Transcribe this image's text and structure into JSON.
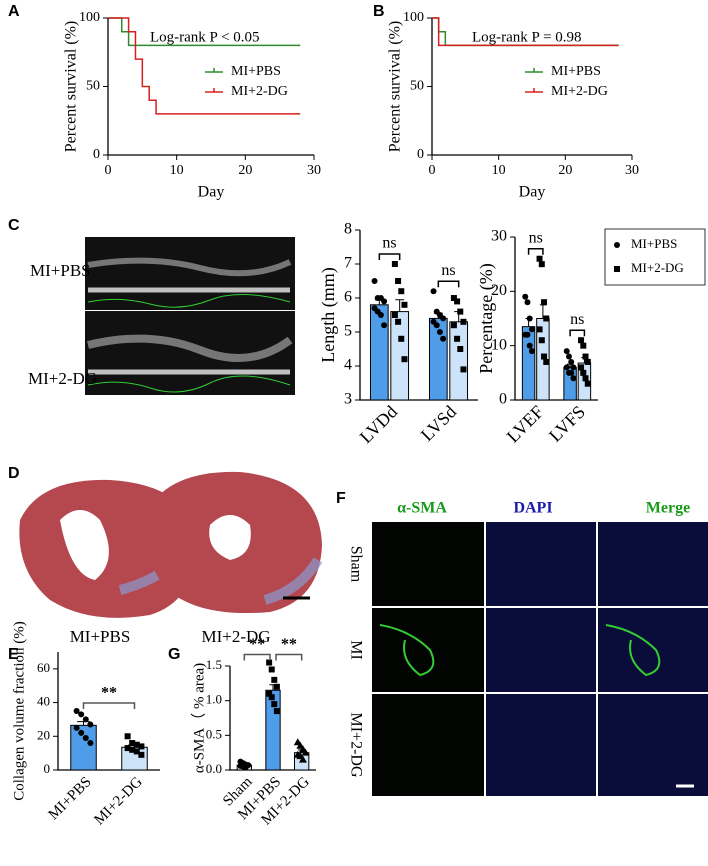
{
  "panels": {
    "letters": [
      "A",
      "B",
      "C",
      "D",
      "E",
      "F",
      "G"
    ],
    "echo_labels": [
      "MI+PBS",
      "MI+2-DG"
    ],
    "heart_labels": [
      "MI+PBS",
      "MI+2-DG"
    ],
    "fluor_columns": [
      "α-SMA",
      "DAPI",
      "Merge"
    ],
    "fluor_rows": [
      "Sham",
      "MI",
      "MI+2-DG"
    ]
  },
  "chart_data": [
    {
      "type": "step",
      "annotation": "Log-rank P < 0.05",
      "x_label": "Day",
      "y_label": "Percent survival (%)",
      "xlim": [
        0,
        30
      ],
      "xticks": [
        0,
        10,
        20,
        30
      ],
      "ylim": [
        0,
        100
      ],
      "yticks": [
        0,
        50,
        100
      ],
      "series": [
        {
          "name": "MI+PBS",
          "color": "#2e8b2e",
          "x": [
            0,
            2,
            3,
            28
          ],
          "values": [
            100,
            90,
            80,
            80
          ]
        },
        {
          "name": "MI+2-DG",
          "color": "#d62020",
          "x": [
            0,
            3,
            4,
            5,
            6,
            7,
            28
          ],
          "values": [
            100,
            90,
            70,
            50,
            40,
            30,
            30
          ]
        }
      ]
    },
    {
      "type": "step",
      "annotation": "Log-rank P = 0.98",
      "x_label": "Day",
      "y_label": "Percent survival (%)",
      "xlim": [
        0,
        30
      ],
      "xticks": [
        0,
        10,
        20,
        30
      ],
      "ylim": [
        0,
        100
      ],
      "yticks": [
        0,
        50,
        100
      ],
      "series": [
        {
          "name": "MI+PBS",
          "color": "#2e8b2e",
          "x": [
            0,
            1,
            2,
            28
          ],
          "values": [
            100,
            90,
            80,
            80
          ]
        },
        {
          "name": "MI+2-DG",
          "color": "#d62020",
          "x": [
            0,
            1,
            28
          ],
          "values": [
            100,
            80,
            80
          ]
        }
      ]
    },
    {
      "type": "bar",
      "y_label": "Length (mm)",
      "categories": [
        "LVDd",
        "LVSd"
      ],
      "ylim": [
        3,
        8
      ],
      "yticks": [
        3,
        4,
        5,
        6,
        7,
        8
      ],
      "significance": [
        "ns",
        "ns"
      ],
      "series": [
        {
          "color": "#4f9de8",
          "marker": "circle",
          "values": [
            5.8,
            5.4
          ],
          "errors": [
            0.15,
            0.15
          ],
          "points": [
            [
              6.5,
              6.0,
              6.0,
              5.9,
              5.7,
              5.6,
              5.5,
              5.2
            ],
            [
              6.2,
              5.6,
              5.5,
              5.4,
              5.3,
              5.2,
              5.0,
              4.8
            ]
          ]
        },
        {
          "color": "#cde3f9",
          "marker": "square",
          "values": [
            5.6,
            5.3
          ],
          "errors": [
            0.35,
            0.3
          ],
          "points": [
            [
              7.0,
              6.5,
              6.2,
              5.8,
              5.5,
              5.3,
              4.8,
              4.2
            ],
            [
              6.0,
              5.9,
              5.6,
              5.3,
              5.2,
              4.8,
              4.5,
              3.9
            ]
          ]
        }
      ]
    },
    {
      "type": "bar",
      "y_label": "Percentage (%)",
      "categories": [
        "LVEF",
        "LVFS"
      ],
      "ylim": [
        0,
        30
      ],
      "yticks": [
        0,
        10,
        20,
        30
      ],
      "significance": [
        "ns",
        "ns"
      ],
      "series": [
        {
          "name": "MI+PBS",
          "color": "#4f9de8",
          "marker": "circle",
          "values": [
            13.5,
            6
          ],
          "errors": [
            1.5,
            0.6
          ],
          "points": [
            [
              19,
              18,
              15,
              13,
              12,
              12,
              10,
              9
            ],
            [
              9,
              8,
              7,
              6,
              6,
              5,
              5,
              4
            ]
          ]
        },
        {
          "name": "MI+2-DG",
          "color": "#cde3f9",
          "marker": "square",
          "values": [
            15,
            6.8
          ],
          "errors": [
            2.5,
            1
          ],
          "points": [
            [
              26,
              25,
              18,
              15,
              13,
              11,
              8,
              7
            ],
            [
              11,
              10,
              8,
              7,
              6,
              5,
              4,
              3
            ]
          ]
        }
      ]
    },
    {
      "type": "bar",
      "y_label": "Collagen volume fraction (%)",
      "categories": [
        "MI+PBS",
        "MI+2-DG"
      ],
      "ylim": [
        0,
        70
      ],
      "yticks": [
        0,
        20,
        40,
        60
      ],
      "significance": [
        "**"
      ],
      "series": [
        {
          "colors": [
            "#4f9de8",
            "#cde3f9"
          ],
          "markers": [
            "circle",
            "square"
          ],
          "values": [
            26.5,
            13.5
          ],
          "errors": [
            2.2,
            1.3
          ],
          "points": [
            [
              35,
              33,
              30,
              27,
              25,
              22,
              19,
              16
            ],
            [
              20,
              16,
              15,
              14,
              13,
              12,
              11,
              9
            ]
          ]
        }
      ]
    },
    {
      "type": "bar",
      "y_label": "α-SMA（ % area)",
      "categories": [
        "Sham",
        "MI+PBS",
        "MI+2-DG"
      ],
      "ylim": [
        0,
        1.5
      ],
      "yticks": [
        {
          "value": 0,
          "label": "0.0"
        },
        0.5,
        {
          "value": 1,
          "label": "1.0"
        },
        1.5
      ],
      "significance": [
        "**",
        "**"
      ],
      "series": [
        {
          "colors": [
            "#cde3f9",
            "#4f9de8",
            "#cde3f9"
          ],
          "markers": [
            "circle",
            "square",
            "triangle"
          ],
          "values": [
            0.07,
            1.15,
            0.25
          ],
          "errors": [
            0.02,
            0.08,
            0.04
          ],
          "points": [
            [
              0.12,
              0.1,
              0.08,
              0.07,
              0.06,
              0.05,
              0.04
            ],
            [
              1.55,
              1.45,
              1.3,
              1.2,
              1.1,
              1.05,
              0.95,
              0.85
            ],
            [
              0.4,
              0.35,
              0.3,
              0.25,
              0.22,
              0.2,
              0.15
            ]
          ]
        }
      ]
    }
  ]
}
